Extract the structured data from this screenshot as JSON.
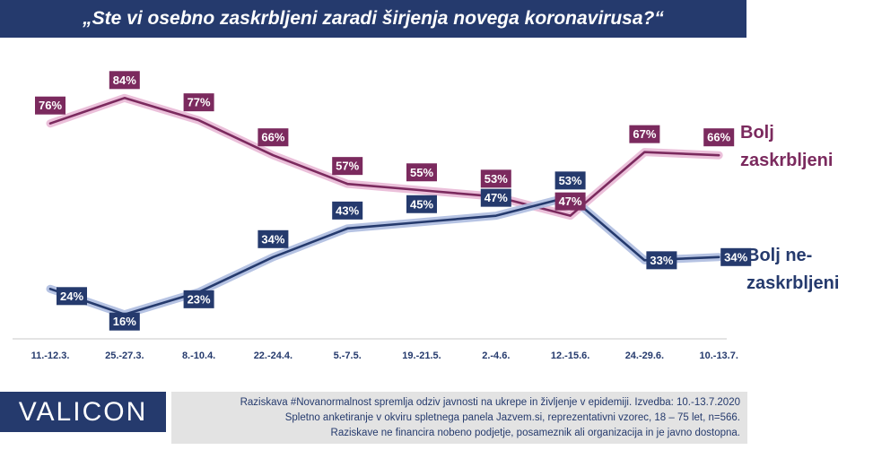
{
  "header": {
    "title": "„Ste vi osebno zaskrbljeni zaradi širjenja novega koronavirusa?“"
  },
  "chart_data": {
    "type": "line",
    "title": "„Ste vi osebno zaskrbljeni zaradi širjenja novega koronavirusa?“",
    "categories": [
      "11.-12.3.",
      "25.-27.3.",
      "8.-10.4.",
      "22.-24.4.",
      "5.-7.5.",
      "19.-21.5.",
      "2.-4.6.",
      "12.-15.6.",
      "24.-29.6.",
      "10.-13.7."
    ],
    "series": [
      {
        "name": "Bolj zaskrbljeni",
        "legend_lines": [
          "Bolj",
          "zaskrbljeni"
        ],
        "color": "#7b2a5e",
        "glow": "#e9b9d6",
        "values": [
          76,
          84,
          77,
          66,
          57,
          55,
          53,
          47,
          67,
          66
        ],
        "labels": [
          "76%",
          "84%",
          "77%",
          "66%",
          "57%",
          "55%",
          "53%",
          "47%",
          "67%",
          "66%"
        ]
      },
      {
        "name": "Bolj ne-zaskrbljeni",
        "legend_lines": [
          "Bolj ne-",
          "zaskrbljeni"
        ],
        "color": "#253a6d",
        "glow": "#aebde0",
        "values": [
          24,
          16,
          23,
          34,
          43,
          45,
          47,
          53,
          33,
          34
        ],
        "labels": [
          "24%",
          "16%",
          "23%",
          "34%",
          "43%",
          "45%",
          "47%",
          "53%",
          "33%",
          "34%"
        ]
      }
    ],
    "xlabel": "",
    "ylabel": "",
    "ylim": [
      10,
      90
    ],
    "grid": false
  },
  "footer": {
    "logo": "VALICON",
    "notes": [
      "Raziskava #Novanormalnost spremlja odziv javnosti na ukrepe in življenje v epidemiji. Izvedba: 10.-13.7.2020",
      "Spletno anketiranje v okviru spletnega panela Jazvem.si, reprezentativni vzorec, 18 – 75 let, n=566.",
      "Raziskave ne financira nobeno podjetje, posameznik ali organizacija in je javno dostopna."
    ]
  }
}
